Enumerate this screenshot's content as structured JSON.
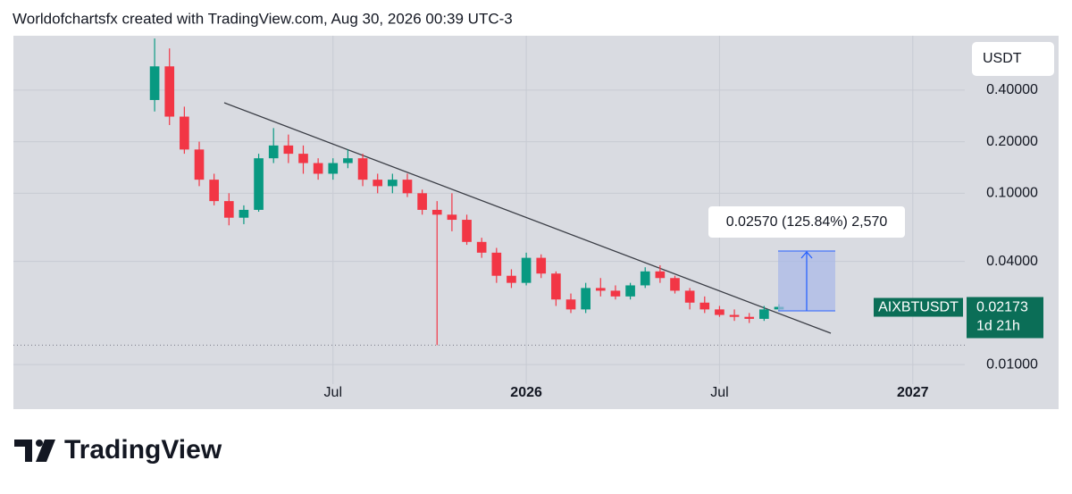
{
  "header": "Worldofchartsfx created with TradingView.com, Aug 30, 2026 00:39 UTC-3",
  "brand": "TradingView",
  "chart_data": {
    "type": "candlestick",
    "symbol": "AIXBTUSDT",
    "currency": "USDT",
    "countdown": "1d 21h",
    "annotation": "0.02570 (125.84%) 2,570",
    "log_scale": true,
    "grid": true,
    "up_color": "#089981",
    "down_color": "#f23645",
    "ylim": [
      0.0055,
      0.83
    ],
    "yticks": [
      {
        "value": 0.4,
        "label": "0.40000"
      },
      {
        "value": 0.2,
        "label": "0.20000"
      },
      {
        "value": 0.1,
        "label": "0.10000"
      },
      {
        "value": 0.04,
        "label": "0.04000"
      },
      {
        "value": 0.01,
        "label": "0.01000"
      }
    ],
    "categories": [
      null,
      null,
      null,
      null,
      null,
      null,
      null,
      null,
      null,
      null,
      null,
      null,
      null,
      null,
      null,
      null,
      null,
      null,
      null,
      null,
      null,
      "Jul",
      null,
      null,
      null,
      null,
      null,
      null,
      null,
      null,
      null,
      null,
      null,
      null,
      "2026",
      null,
      null,
      null,
      null,
      null,
      null,
      null,
      null,
      null,
      null,
      null,
      null,
      "Jul",
      null,
      null,
      null,
      null,
      null,
      null,
      null,
      null,
      null,
      null,
      null,
      null,
      "2027",
      null,
      null,
      null
    ],
    "open": [
      null,
      null,
      null,
      null,
      null,
      null,
      null,
      null,
      null,
      0.35,
      0.55,
      0.28,
      0.18,
      0.12,
      0.09,
      0.072,
      0.08,
      0.16,
      0.19,
      0.17,
      0.15,
      0.13,
      0.15,
      0.16,
      0.12,
      0.11,
      0.12,
      0.1,
      0.08,
      0.075,
      0.07,
      0.052,
      0.045,
      0.033,
      0.03,
      0.042,
      0.034,
      0.024,
      0.021,
      0.028,
      0.027,
      0.025,
      0.029,
      0.035,
      0.032,
      0.027,
      0.023,
      0.021,
      0.0195,
      0.019,
      0.0185,
      0.021,
      null,
      null,
      null,
      null,
      null,
      null,
      null,
      null,
      null,
      null,
      null,
      null
    ],
    "high": [
      null,
      null,
      null,
      null,
      null,
      null,
      null,
      null,
      null,
      0.8,
      0.7,
      0.32,
      0.2,
      0.13,
      0.1,
      0.085,
      0.17,
      0.24,
      0.22,
      0.19,
      0.16,
      0.16,
      0.18,
      0.17,
      0.13,
      0.13,
      0.13,
      0.105,
      0.09,
      0.1,
      0.075,
      0.055,
      0.048,
      0.036,
      0.045,
      0.044,
      0.035,
      0.026,
      0.03,
      0.032,
      0.029,
      0.03,
      0.037,
      0.038,
      0.033,
      0.028,
      0.025,
      0.022,
      0.021,
      0.02,
      0.022,
      0.0225,
      null,
      null,
      null,
      null,
      null,
      null,
      null,
      null,
      null,
      null,
      null,
      null
    ],
    "low": [
      null,
      null,
      null,
      null,
      null,
      null,
      null,
      null,
      null,
      0.3,
      0.25,
      0.17,
      0.11,
      0.085,
      0.065,
      0.066,
      0.078,
      0.15,
      0.15,
      0.13,
      0.12,
      0.12,
      0.14,
      0.11,
      0.1,
      0.1,
      0.095,
      0.075,
      0.013,
      0.06,
      0.05,
      0.042,
      0.03,
      0.028,
      0.029,
      0.032,
      0.022,
      0.02,
      0.02,
      0.025,
      0.024,
      0.024,
      0.028,
      0.03,
      0.026,
      0.021,
      0.02,
      0.019,
      0.018,
      0.0175,
      0.018,
      0.0205,
      null,
      null,
      null,
      null,
      null,
      null,
      null,
      null,
      null,
      null,
      null,
      null
    ],
    "close": [
      null,
      null,
      null,
      null,
      null,
      null,
      null,
      null,
      null,
      0.55,
      0.28,
      0.18,
      0.12,
      0.09,
      0.072,
      0.08,
      0.16,
      0.19,
      0.17,
      0.15,
      0.13,
      0.15,
      0.16,
      0.12,
      0.11,
      0.12,
      0.1,
      0.08,
      0.075,
      0.07,
      0.052,
      0.045,
      0.033,
      0.03,
      0.042,
      0.034,
      0.024,
      0.021,
      0.028,
      0.027,
      0.025,
      0.029,
      0.035,
      0.032,
      0.027,
      0.023,
      0.021,
      0.0195,
      0.019,
      0.0185,
      0.021,
      0.02173,
      null,
      null,
      null,
      null,
      null,
      null,
      null,
      null,
      null,
      null,
      null,
      null
    ]
  }
}
